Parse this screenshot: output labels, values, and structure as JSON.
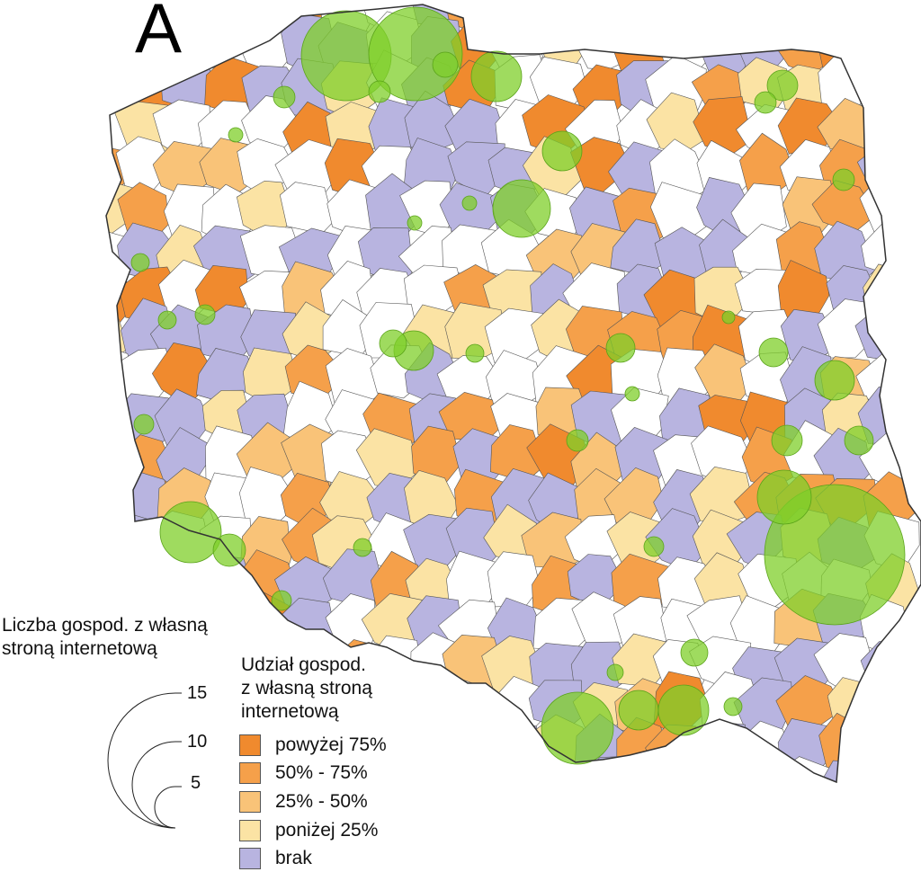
{
  "panel_label": "A",
  "size_legend": {
    "title_line1": "Liczba gospod. z własną",
    "title_line2": "stroną internetową",
    "values": [
      "15",
      "10",
      "5"
    ]
  },
  "class_legend": {
    "title_line1": "Udział gospod.",
    "title_line2": "z własną stroną",
    "title_line3": "internetową",
    "items": [
      {
        "label": "powyżej 75%",
        "color": "#f08a2e"
      },
      {
        "label": "50% - 75%",
        "color": "#f5a04a"
      },
      {
        "label": "25% - 50%",
        "color": "#f9c378"
      },
      {
        "label": "poniżej 25%",
        "color": "#fbe3a4"
      },
      {
        "label": "brak",
        "color": "#b8b4e0"
      }
    ]
  },
  "symbol_color": "#7fcf2a",
  "border_color": "#555555"
}
